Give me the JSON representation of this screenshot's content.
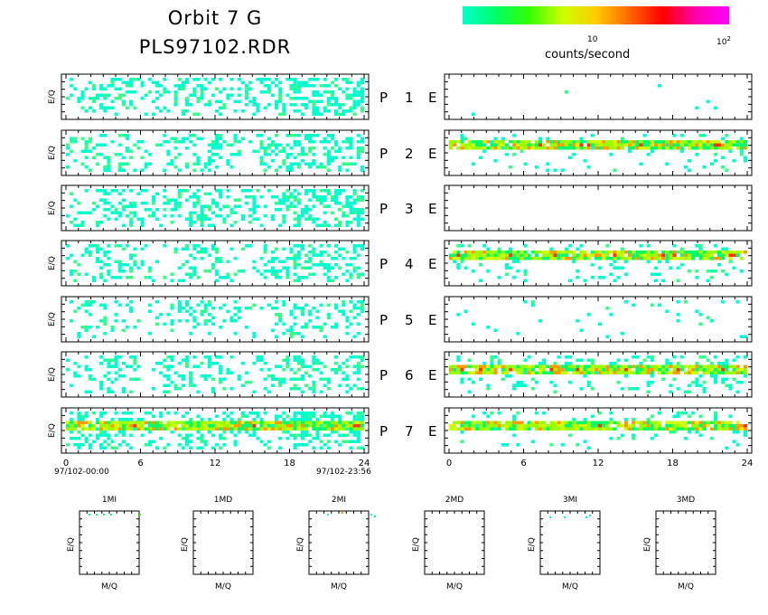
{
  "header": {
    "title_line1": "Orbit 7 G",
    "title_line2": "PLS97102.RDR"
  },
  "colorbar": {
    "tick_10": "10",
    "tick_100": "10",
    "tick_100_exp": "2",
    "label": "counts/second",
    "colors": [
      "#00ffcc",
      "#00ff66",
      "#33ff00",
      "#ccff00",
      "#ffcc00",
      "#ff6600",
      "#ff0000",
      "#ff00aa",
      "#ff00ff"
    ]
  },
  "panels": {
    "row_labels": [
      "P 1 E",
      "P 2 E",
      "P 3 E",
      "P 4 E",
      "P 5 E",
      "P 6 E",
      "P 7 E"
    ],
    "ylabel": "E/Q",
    "xticks": [
      "0",
      "6",
      "12",
      "18",
      "24"
    ],
    "start_time": "97/102-00:00",
    "end_time": "97/102-23:56"
  },
  "small_panels": [
    {
      "title": "1MI",
      "ylabel": "E/Q",
      "xlabel": "M/Q"
    },
    {
      "title": "1MD",
      "ylabel": "E/Q",
      "xlabel": "M/Q"
    },
    {
      "title": "2MI",
      "ylabel": "E/Q",
      "xlabel": "M/Q"
    },
    {
      "title": "2MD",
      "ylabel": "E/Q",
      "xlabel": "M/Q"
    },
    {
      "title": "3MI",
      "ylabel": "E/Q",
      "xlabel": "M/Q"
    },
    {
      "title": "3MD",
      "ylabel": "E/Q",
      "xlabel": "M/Q"
    }
  ],
  "chart_data": {
    "type": "heatmap",
    "title": "Orbit 7 G",
    "subtitle": "PLS97102.RDR",
    "xlabel": "",
    "ylabel": "E/Q",
    "xlim": [
      0,
      24
    ],
    "xticks": [
      0,
      6,
      12,
      18,
      24
    ],
    "colorbar_label": "counts/second",
    "colorbar_ticks": [
      "10",
      "10^2"
    ],
    "rows": [
      "P 1",
      "P 2",
      "P 3",
      "P 4",
      "P 5",
      "P 6",
      "P 7"
    ],
    "left_column": {
      "density": [
        0.35,
        0.3,
        0.35,
        0.3,
        0.2,
        0.3,
        0.4
      ],
      "band_row": [
        null,
        null,
        null,
        null,
        null,
        null,
        0.3
      ]
    },
    "right_column": {
      "density": [
        0.003,
        0.08,
        0.0,
        0.12,
        0.03,
        0.15,
        0.1
      ],
      "band_row": [
        null,
        0.25,
        null,
        0.25,
        null,
        0.3,
        0.3
      ]
    }
  }
}
